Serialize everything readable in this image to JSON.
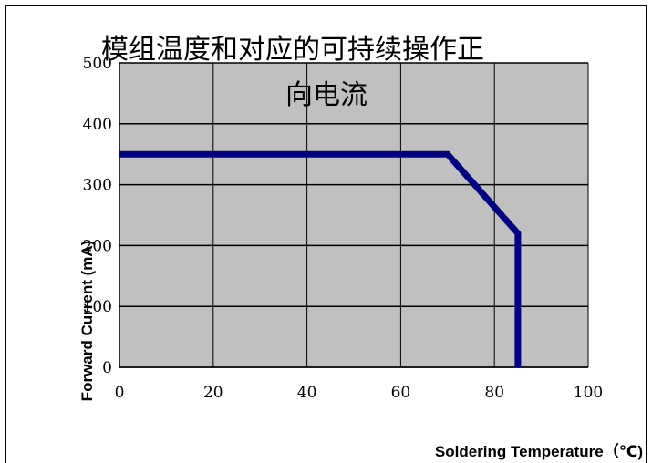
{
  "chart_data": {
    "type": "line",
    "title_lines": [
      "模组温度和对应的可持续操作正",
      "向电流"
    ],
    "xlabel": "Soldering Temperature（℃)",
    "ylabel": "Forward Current (mA)",
    "xlim": [
      0,
      100
    ],
    "ylim": [
      0,
      500
    ],
    "x_ticks": [
      0,
      20,
      40,
      60,
      80,
      100
    ],
    "y_ticks": [
      0,
      100,
      200,
      300,
      400,
      500
    ],
    "grid": true,
    "plot_background": "#c0c0c0",
    "series": [
      {
        "color": "#000080",
        "x": [
          0,
          70,
          85,
          85
        ],
        "y": [
          350,
          350,
          220,
          0
        ]
      }
    ]
  }
}
